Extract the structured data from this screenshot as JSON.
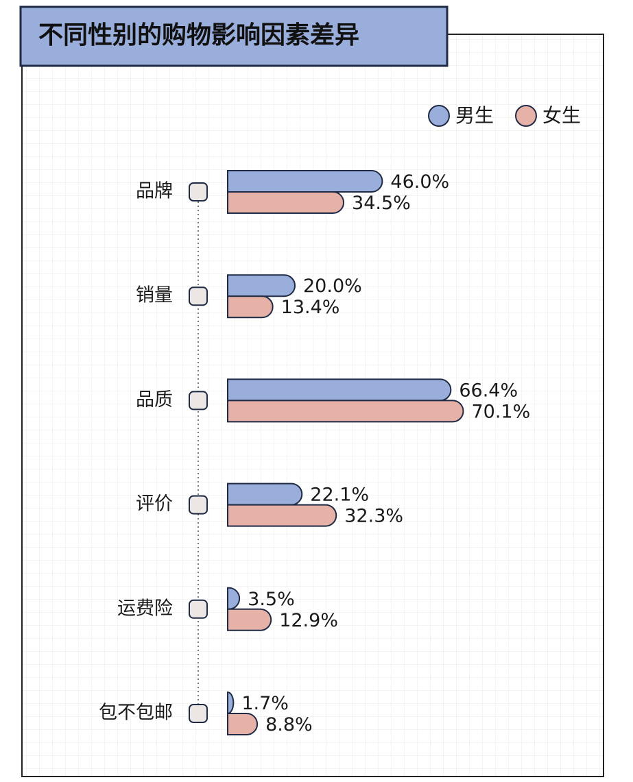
{
  "chart_data": {
    "type": "bar",
    "orientation": "horizontal",
    "title": "不同性别的购物影响因素差异",
    "categories": [
      "品牌",
      "销量",
      "品质",
      "评价",
      "运费险",
      "包不包邮"
    ],
    "series": [
      {
        "name": "男生",
        "color": "#9aaedb",
        "values": [
          46.0,
          20.0,
          66.4,
          22.1,
          3.5,
          1.7
        ],
        "labels": [
          "46.0%",
          "20.0%",
          "66.4%",
          "22.1%",
          "3.5%",
          "1.7%"
        ]
      },
      {
        "name": "女生",
        "color": "#e6b2a8",
        "values": [
          34.5,
          13.4,
          70.1,
          32.3,
          12.9,
          8.8
        ],
        "labels": [
          "34.5%",
          "13.4%",
          "70.1%",
          "32.3%",
          "12.9%",
          "8.8%"
        ]
      }
    ],
    "xlim": [
      0,
      100
    ],
    "grid": true,
    "legend_position": "top-right",
    "title_banner_color": "#9aaedb"
  }
}
